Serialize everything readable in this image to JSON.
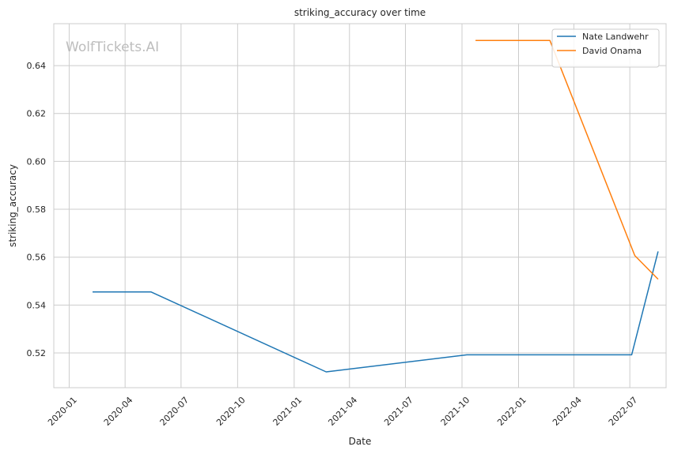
{
  "chart_data": {
    "type": "line",
    "title": "striking_accuracy over time",
    "xlabel": "Date",
    "ylabel": "striking_accuracy",
    "x_type": "date",
    "xlim": [
      "2019-12-07",
      "2022-08-29"
    ],
    "ylim": [
      0.5055,
      0.6575
    ],
    "x_ticks": [
      "2020-01-01",
      "2020-04-01",
      "2020-07-01",
      "2020-10-01",
      "2021-01-01",
      "2021-04-01",
      "2021-07-01",
      "2021-10-01",
      "2022-01-01",
      "2022-04-01",
      "2022-07-01"
    ],
    "x_tick_labels": [
      "2020-01",
      "2020-04",
      "2020-07",
      "2020-10",
      "2021-01",
      "2021-04",
      "2021-07",
      "2021-10",
      "2022-01",
      "2022-04",
      "2022-07"
    ],
    "y_ticks": [
      0.52,
      0.54,
      0.56,
      0.58,
      0.6,
      0.62,
      0.64
    ],
    "y_tick_labels": [
      "0.52",
      "0.54",
      "0.56",
      "0.58",
      "0.60",
      "0.62",
      "0.64"
    ],
    "grid": true,
    "legend_position": "top-right",
    "watermark": "WolfTickets.AI",
    "series": [
      {
        "name": "Nate Landwehr",
        "color": "#1f77b4",
        "points": [
          {
            "x": "2020-02-08",
            "y": 0.5455
          },
          {
            "x": "2020-05-13",
            "y": 0.5455
          },
          {
            "x": "2021-02-22",
            "y": 0.5121
          },
          {
            "x": "2021-10-09",
            "y": 0.5192
          },
          {
            "x": "2022-07-04",
            "y": 0.5192
          },
          {
            "x": "2022-08-16",
            "y": 0.5624
          }
        ]
      },
      {
        "name": "David Onama",
        "color": "#ff7f0e",
        "points": [
          {
            "x": "2021-10-23",
            "y": 0.6505
          },
          {
            "x": "2022-02-21",
            "y": 0.6505
          },
          {
            "x": "2022-07-09",
            "y": 0.5607
          },
          {
            "x": "2022-08-16",
            "y": 0.5508
          }
        ]
      }
    ]
  }
}
